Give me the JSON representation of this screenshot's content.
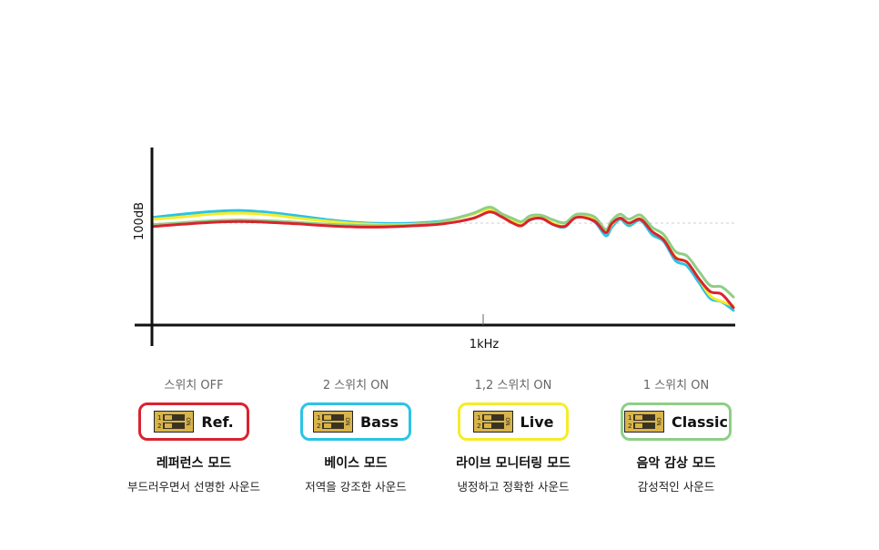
{
  "chart_data": {
    "type": "line",
    "title": "",
    "xlabel": "1kHz",
    "ylabel": "100dB",
    "grid": false,
    "reference_line": "100dB",
    "x": [
      0,
      0.05,
      0.1,
      0.15,
      0.2,
      0.25,
      0.3,
      0.35,
      0.4,
      0.45,
      0.5,
      0.55,
      0.58,
      0.6,
      0.62,
      0.635,
      0.65,
      0.67,
      0.69,
      0.71,
      0.73,
      0.76,
      0.78,
      0.79,
      0.805,
      0.82,
      0.84,
      0.86,
      0.88,
      0.9,
      0.92,
      0.94,
      0.96,
      0.98,
      1.0
    ],
    "series": [
      {
        "color": "#2bc3e6",
        "values": [
          101.5,
          102.3,
          103.0,
          103.3,
          102.8,
          101.9,
          100.9,
          100.2,
          99.9,
          100.0,
          100.6,
          102.3,
          104.0,
          102.5,
          100.2,
          99.4,
          100.8,
          101.5,
          99.6,
          99.0,
          101.8,
          100.4,
          96.7,
          98.8,
          101.0,
          99.3,
          100.7,
          97.0,
          95.2,
          90.2,
          88.8,
          84.6,
          80.3,
          79.4,
          77.2
        ]
      },
      {
        "color": "#f5ec2a",
        "values": [
          101.0,
          101.6,
          102.3,
          102.6,
          102.2,
          101.3,
          100.5,
          99.9,
          99.6,
          99.7,
          100.4,
          102.3,
          103.6,
          102.1,
          100.5,
          99.8,
          101.1,
          101.6,
          99.9,
          99.3,
          102.0,
          100.9,
          97.5,
          99.5,
          101.4,
          99.9,
          101.2,
          97.8,
          95.8,
          91.2,
          89.7,
          85.6,
          81.0,
          79.5,
          78.4
        ]
      },
      {
        "color": "#8fce86",
        "values": [
          99.6,
          100.1,
          100.6,
          100.8,
          100.6,
          100.2,
          99.7,
          99.4,
          99.3,
          99.5,
          100.5,
          102.5,
          104.2,
          102.5,
          101.2,
          100.4,
          101.9,
          102.0,
          100.8,
          100.1,
          102.3,
          101.7,
          98.3,
          100.6,
          102.3,
          101.0,
          102.1,
          98.9,
          97.0,
          92.6,
          91.4,
          87.5,
          83.7,
          83.3,
          80.7
        ]
      },
      {
        "color": "#d9232e",
        "values": [
          99.1,
          99.7,
          100.2,
          100.4,
          100.2,
          99.8,
          99.3,
          99.0,
          99.0,
          99.3,
          99.8,
          101.2,
          102.9,
          101.7,
          100.0,
          99.3,
          100.9,
          101.2,
          99.6,
          99.2,
          101.5,
          100.6,
          97.5,
          99.8,
          101.3,
          100.0,
          101.0,
          97.8,
          95.6,
          91.0,
          89.8,
          85.6,
          82.1,
          81.4,
          77.9
        ]
      }
    ]
  },
  "modes": [
    {
      "switch": "스위치 OFF",
      "badge": "Ref.",
      "name": "레퍼런스 모드",
      "desc": "부드러우면서 선명한 사운드",
      "color": "#d9232e"
    },
    {
      "switch": "2 스위치 ON",
      "badge": "Bass",
      "name": "베이스 모드",
      "desc": "저역을 강조한 사운드",
      "color": "#2bc3e6"
    },
    {
      "switch": "1,2 스위치 ON",
      "badge": "Live",
      "name": "라이브 모니터링 모드",
      "desc": "냉정하고 정확한 사운드",
      "color": "#f5ec2a"
    },
    {
      "switch": "1 스위치 ON",
      "badge": "Classic",
      "name": "음악 감상 모드",
      "desc": "감성적인 사운드",
      "color": "#8fce86"
    }
  ],
  "dip_switch": {
    "on_label": "ON",
    "positions": [
      "1",
      "2"
    ],
    "color": "#d8b44a"
  }
}
